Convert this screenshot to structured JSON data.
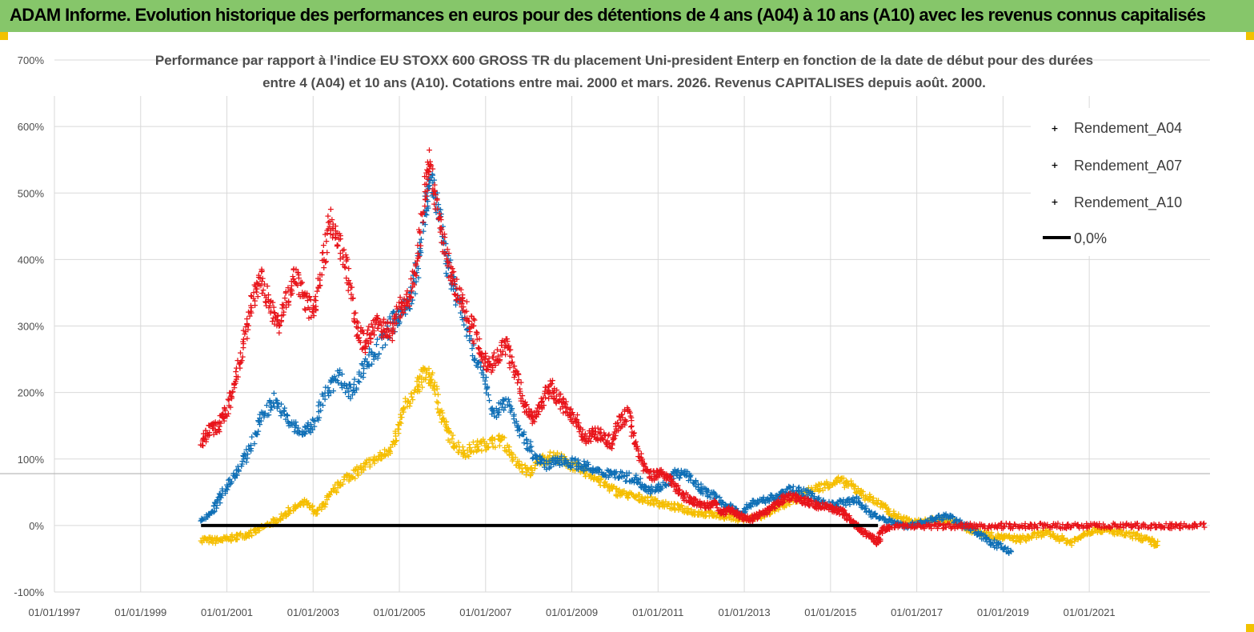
{
  "banner": {
    "title": "ADAM Informe. Evolution historique des performances en euros pour des détentions de 4 ans (A04) à 10 ans (A10) avec les revenus connus capitalisés",
    "color": "#86c66a"
  },
  "chart_data": {
    "type": "scatter",
    "title_line1": "Performance par rapport à l'indice EU STOXX 600 GROSS TR  du placement Uni-president Enterp  en fonction de la date de début pour des durées",
    "title_line2": "entre 4 (A04) et 10 ans (A10). Cotations entre mai. 2000 et mars. 2026. Revenus CAPITALISES depuis août. 2000.",
    "xlabel": "",
    "ylabel": "",
    "x_range": [
      1997.0,
      2023.8
    ],
    "ylim": [
      -100,
      700
    ],
    "y_ticks": [
      "-100%",
      "0%",
      "100%",
      "200%",
      "300%",
      "400%",
      "500%",
      "600%",
      "700%"
    ],
    "x_ticks": [
      "01/01/1997",
      "01/01/1999",
      "01/01/2001",
      "01/01/2003",
      "01/01/2005",
      "01/01/2007",
      "01/01/2009",
      "01/01/2011",
      "01/01/2013",
      "01/01/2015",
      "01/01/2017",
      "01/01/2019",
      "01/01/2021"
    ],
    "grid": true,
    "legend_position": "top-right",
    "series": [
      {
        "name": "Rendement_A04",
        "color": "#f5be00",
        "marker": "+",
        "points": [
          [
            2000.4,
            -20
          ],
          [
            2000.7,
            -22
          ],
          [
            2001.0,
            -20
          ],
          [
            2001.3,
            -15
          ],
          [
            2001.6,
            -10
          ],
          [
            2001.9,
            0
          ],
          [
            2002.2,
            10
          ],
          [
            2002.5,
            25
          ],
          [
            2002.8,
            35
          ],
          [
            2003.1,
            20
          ],
          [
            2003.4,
            45
          ],
          [
            2003.7,
            70
          ],
          [
            2004.0,
            80
          ],
          [
            2004.3,
            95
          ],
          [
            2004.6,
            105
          ],
          [
            2004.9,
            125
          ],
          [
            2005.1,
            175
          ],
          [
            2005.4,
            210
          ],
          [
            2005.6,
            230
          ],
          [
            2005.8,
            215
          ],
          [
            2006.0,
            160
          ],
          [
            2006.2,
            130
          ],
          [
            2006.5,
            110
          ],
          [
            2006.8,
            120
          ],
          [
            2007.1,
            125
          ],
          [
            2007.4,
            130
          ],
          [
            2007.7,
            95
          ],
          [
            2008.0,
            80
          ],
          [
            2008.3,
            100
          ],
          [
            2008.6,
            105
          ],
          [
            2008.9,
            95
          ],
          [
            2009.2,
            85
          ],
          [
            2009.5,
            75
          ],
          [
            2009.8,
            60
          ],
          [
            2010.1,
            50
          ],
          [
            2010.4,
            45
          ],
          [
            2010.7,
            40
          ],
          [
            2011.0,
            35
          ],
          [
            2011.3,
            30
          ],
          [
            2011.6,
            25
          ],
          [
            2011.9,
            20
          ],
          [
            2012.2,
            18
          ],
          [
            2012.5,
            15
          ],
          [
            2012.8,
            12
          ],
          [
            2013.1,
            10
          ],
          [
            2013.4,
            15
          ],
          [
            2013.7,
            25
          ],
          [
            2014.0,
            35
          ],
          [
            2014.3,
            45
          ],
          [
            2014.6,
            55
          ],
          [
            2014.9,
            62
          ],
          [
            2015.2,
            68
          ],
          [
            2015.5,
            60
          ],
          [
            2015.8,
            45
          ],
          [
            2016.1,
            35
          ],
          [
            2016.4,
            20
          ],
          [
            2016.7,
            10
          ],
          [
            2017.0,
            5
          ],
          [
            2017.3,
            8
          ],
          [
            2017.6,
            10
          ],
          [
            2017.9,
            5
          ],
          [
            2018.2,
            -5
          ],
          [
            2018.5,
            -10
          ],
          [
            2018.8,
            -15
          ],
          [
            2019.1,
            -18
          ],
          [
            2019.4,
            -20
          ],
          [
            2019.7,
            -15
          ],
          [
            2020.0,
            -10
          ],
          [
            2020.3,
            -18
          ],
          [
            2020.6,
            -25
          ],
          [
            2020.9,
            -10
          ],
          [
            2021.2,
            -5
          ],
          [
            2021.5,
            -8
          ],
          [
            2021.8,
            -12
          ],
          [
            2022.1,
            -15
          ],
          [
            2022.4,
            -22
          ],
          [
            2022.6,
            -28
          ]
        ]
      },
      {
        "name": "Rendement_A07",
        "color": "#0f6fb6",
        "marker": "+",
        "points": [
          [
            2000.4,
            5
          ],
          [
            2000.7,
            25
          ],
          [
            2000.9,
            50
          ],
          [
            2001.2,
            80
          ],
          [
            2001.5,
            110
          ],
          [
            2001.8,
            165
          ],
          [
            2002.1,
            190
          ],
          [
            2002.4,
            160
          ],
          [
            2002.7,
            140
          ],
          [
            2003.0,
            150
          ],
          [
            2003.3,
            200
          ],
          [
            2003.6,
            225
          ],
          [
            2003.9,
            200
          ],
          [
            2004.2,
            245
          ],
          [
            2004.5,
            265
          ],
          [
            2004.8,
            300
          ],
          [
            2005.0,
            320
          ],
          [
            2005.2,
            330
          ],
          [
            2005.4,
            380
          ],
          [
            2005.6,
            470
          ],
          [
            2005.7,
            520
          ],
          [
            2005.9,
            480
          ],
          [
            2006.1,
            400
          ],
          [
            2006.3,
            350
          ],
          [
            2006.6,
            290
          ],
          [
            2006.9,
            230
          ],
          [
            2007.2,
            170
          ],
          [
            2007.5,
            190
          ],
          [
            2007.8,
            140
          ],
          [
            2008.1,
            110
          ],
          [
            2008.4,
            90
          ],
          [
            2008.7,
            100
          ],
          [
            2009.0,
            95
          ],
          [
            2009.3,
            90
          ],
          [
            2009.6,
            80
          ],
          [
            2009.9,
            80
          ],
          [
            2010.2,
            75
          ],
          [
            2010.5,
            70
          ],
          [
            2010.8,
            55
          ],
          [
            2011.1,
            60
          ],
          [
            2011.4,
            80
          ],
          [
            2011.7,
            75
          ],
          [
            2012.0,
            55
          ],
          [
            2012.3,
            45
          ],
          [
            2012.6,
            30
          ],
          [
            2012.9,
            20
          ],
          [
            2013.2,
            35
          ],
          [
            2013.5,
            40
          ],
          [
            2013.8,
            45
          ],
          [
            2014.1,
            55
          ],
          [
            2014.4,
            50
          ],
          [
            2014.7,
            40
          ],
          [
            2015.0,
            30
          ],
          [
            2015.3,
            35
          ],
          [
            2015.6,
            40
          ],
          [
            2015.9,
            20
          ],
          [
            2016.2,
            10
          ],
          [
            2016.5,
            5
          ],
          [
            2016.8,
            0
          ],
          [
            2017.1,
            5
          ],
          [
            2017.4,
            10
          ],
          [
            2017.7,
            15
          ],
          [
            2018.0,
            5
          ],
          [
            2018.3,
            -5
          ],
          [
            2018.6,
            -20
          ],
          [
            2018.9,
            -30
          ],
          [
            2019.2,
            -40
          ]
        ]
      },
      {
        "name": "Rendement_A10",
        "color": "#e8141a",
        "marker": "+",
        "points": [
          [
            2000.4,
            125
          ],
          [
            2000.6,
            145
          ],
          [
            2000.8,
            150
          ],
          [
            2001.0,
            175
          ],
          [
            2001.2,
            215
          ],
          [
            2001.4,
            280
          ],
          [
            2001.6,
            345
          ],
          [
            2001.8,
            370
          ],
          [
            2002.0,
            330
          ],
          [
            2002.2,
            300
          ],
          [
            2002.4,
            345
          ],
          [
            2002.6,
            375
          ],
          [
            2002.8,
            345
          ],
          [
            2003.0,
            320
          ],
          [
            2003.2,
            390
          ],
          [
            2003.4,
            460
          ],
          [
            2003.6,
            430
          ],
          [
            2003.8,
            380
          ],
          [
            2004.0,
            300
          ],
          [
            2004.2,
            270
          ],
          [
            2004.4,
            300
          ],
          [
            2004.6,
            300
          ],
          [
            2004.8,
            290
          ],
          [
            2005.0,
            330
          ],
          [
            2005.2,
            340
          ],
          [
            2005.4,
            390
          ],
          [
            2005.6,
            500
          ],
          [
            2005.7,
            550
          ],
          [
            2005.9,
            470
          ],
          [
            2006.1,
            400
          ],
          [
            2006.3,
            360
          ],
          [
            2006.5,
            330
          ],
          [
            2006.7,
            300
          ],
          [
            2006.9,
            260
          ],
          [
            2007.1,
            240
          ],
          [
            2007.3,
            260
          ],
          [
            2007.5,
            270
          ],
          [
            2007.7,
            230
          ],
          [
            2007.9,
            180
          ],
          [
            2008.1,
            160
          ],
          [
            2008.3,
            185
          ],
          [
            2008.5,
            210
          ],
          [
            2008.7,
            190
          ],
          [
            2008.9,
            175
          ],
          [
            2009.1,
            160
          ],
          [
            2009.3,
            130
          ],
          [
            2009.5,
            140
          ],
          [
            2009.7,
            135
          ],
          [
            2009.9,
            125
          ],
          [
            2010.1,
            155
          ],
          [
            2010.3,
            170
          ],
          [
            2010.5,
            120
          ],
          [
            2010.7,
            85
          ],
          [
            2010.9,
            75
          ],
          [
            2011.1,
            80
          ],
          [
            2011.3,
            70
          ],
          [
            2011.5,
            50
          ],
          [
            2011.7,
            40
          ],
          [
            2011.9,
            35
          ],
          [
            2012.1,
            30
          ],
          [
            2012.3,
            35
          ],
          [
            2012.5,
            20
          ],
          [
            2012.7,
            25
          ],
          [
            2012.9,
            15
          ],
          [
            2013.1,
            10
          ],
          [
            2013.3,
            15
          ],
          [
            2013.5,
            20
          ],
          [
            2013.7,
            30
          ],
          [
            2013.9,
            40
          ],
          [
            2014.1,
            45
          ],
          [
            2014.3,
            40
          ],
          [
            2014.5,
            35
          ],
          [
            2014.7,
            30
          ],
          [
            2014.9,
            30
          ],
          [
            2015.1,
            25
          ],
          [
            2015.3,
            20
          ],
          [
            2015.5,
            5
          ],
          [
            2015.7,
            -5
          ],
          [
            2015.9,
            -15
          ],
          [
            2016.1,
            -25
          ],
          [
            2016.2,
            -5
          ],
          [
            2016.4,
            0
          ],
          [
            2016.8,
            0
          ],
          [
            2017.2,
            0
          ],
          [
            2017.6,
            0
          ],
          [
            2018.0,
            0
          ],
          [
            2018.4,
            0
          ],
          [
            2018.8,
            0
          ],
          [
            2019.2,
            0
          ],
          [
            2019.6,
            0
          ],
          [
            2020.0,
            0
          ],
          [
            2020.4,
            0
          ],
          [
            2020.8,
            0
          ],
          [
            2021.2,
            0
          ],
          [
            2021.6,
            0
          ],
          [
            2022.0,
            0
          ],
          [
            2022.4,
            0
          ],
          [
            2022.8,
            0
          ],
          [
            2023.2,
            0
          ],
          [
            2023.7,
            0
          ]
        ]
      }
    ],
    "reference_line": {
      "name": "0,0%",
      "value": 0,
      "x_start": 2000.4,
      "x_end": 2016.1,
      "color": "#000000"
    },
    "hline": {
      "value": 78,
      "color": "#b3b3b3"
    }
  }
}
